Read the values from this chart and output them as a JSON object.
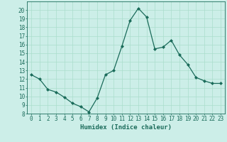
{
  "x": [
    0,
    1,
    2,
    3,
    4,
    5,
    6,
    7,
    8,
    9,
    10,
    11,
    12,
    13,
    14,
    15,
    16,
    17,
    18,
    19,
    20,
    21,
    22,
    23
  ],
  "y": [
    12.5,
    12.0,
    10.8,
    10.5,
    9.9,
    9.2,
    8.8,
    8.2,
    9.8,
    12.5,
    13.0,
    15.8,
    18.8,
    20.2,
    19.2,
    15.5,
    15.7,
    16.5,
    14.8,
    13.7,
    12.2,
    11.8,
    11.5,
    11.5
  ],
  "line_color": "#1a6b5a",
  "marker": "D",
  "markersize": 2,
  "linewidth": 0.9,
  "bg_color": "#cceee8",
  "grid_color": "#aaddcc",
  "xlabel": "Humidex (Indice chaleur)",
  "ylim": [
    8,
    21
  ],
  "xlim": [
    -0.5,
    23.5
  ],
  "yticks": [
    8,
    9,
    10,
    11,
    12,
    13,
    14,
    15,
    16,
    17,
    18,
    19,
    20
  ],
  "xticks": [
    0,
    1,
    2,
    3,
    4,
    5,
    6,
    7,
    8,
    9,
    10,
    11,
    12,
    13,
    14,
    15,
    16,
    17,
    18,
    19,
    20,
    21,
    22,
    23
  ],
  "tick_fontsize": 5.5,
  "label_fontsize": 6.5,
  "axis_color": "#1a6b5a"
}
